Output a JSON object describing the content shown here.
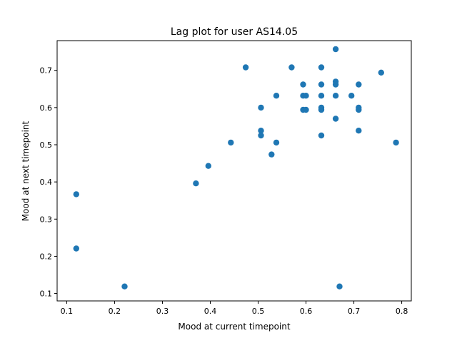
{
  "chart_data": {
    "type": "scatter",
    "title": "Lag plot for user AS14.05",
    "xlabel": "Mood at current timepoint",
    "ylabel": "Mood at next timepoint",
    "xlim": [
      0.08,
      0.82
    ],
    "ylim": [
      0.08,
      0.78
    ],
    "xticks": [
      "0.1",
      "0.2",
      "0.3",
      "0.4",
      "0.5",
      "0.6",
      "0.7",
      "0.8"
    ],
    "yticks": [
      "0.1",
      "0.2",
      "0.3",
      "0.4",
      "0.5",
      "0.6",
      "0.7"
    ],
    "grid": false,
    "marker_color": "#1f77b4",
    "points": [
      {
        "x": 0.12,
        "y": 0.367
      },
      {
        "x": 0.12,
        "y": 0.221
      },
      {
        "x": 0.221,
        "y": 0.119
      },
      {
        "x": 0.37,
        "y": 0.396
      },
      {
        "x": 0.396,
        "y": 0.443
      },
      {
        "x": 0.443,
        "y": 0.506
      },
      {
        "x": 0.474,
        "y": 0.708
      },
      {
        "x": 0.506,
        "y": 0.6
      },
      {
        "x": 0.506,
        "y": 0.538
      },
      {
        "x": 0.506,
        "y": 0.525
      },
      {
        "x": 0.528,
        "y": 0.474
      },
      {
        "x": 0.538,
        "y": 0.632
      },
      {
        "x": 0.538,
        "y": 0.506
      },
      {
        "x": 0.57,
        "y": 0.708
      },
      {
        "x": 0.594,
        "y": 0.662
      },
      {
        "x": 0.594,
        "y": 0.632
      },
      {
        "x": 0.594,
        "y": 0.594
      },
      {
        "x": 0.6,
        "y": 0.632
      },
      {
        "x": 0.6,
        "y": 0.594
      },
      {
        "x": 0.632,
        "y": 0.708
      },
      {
        "x": 0.632,
        "y": 0.662
      },
      {
        "x": 0.632,
        "y": 0.632
      },
      {
        "x": 0.632,
        "y": 0.6
      },
      {
        "x": 0.632,
        "y": 0.594
      },
      {
        "x": 0.632,
        "y": 0.525
      },
      {
        "x": 0.662,
        "y": 0.757
      },
      {
        "x": 0.662,
        "y": 0.67
      },
      {
        "x": 0.662,
        "y": 0.662
      },
      {
        "x": 0.662,
        "y": 0.632
      },
      {
        "x": 0.662,
        "y": 0.57
      },
      {
        "x": 0.67,
        "y": 0.119
      },
      {
        "x": 0.695,
        "y": 0.632
      },
      {
        "x": 0.71,
        "y": 0.662
      },
      {
        "x": 0.71,
        "y": 0.6
      },
      {
        "x": 0.71,
        "y": 0.594
      },
      {
        "x": 0.71,
        "y": 0.538
      },
      {
        "x": 0.757,
        "y": 0.694
      },
      {
        "x": 0.788,
        "y": 0.506
      }
    ]
  }
}
